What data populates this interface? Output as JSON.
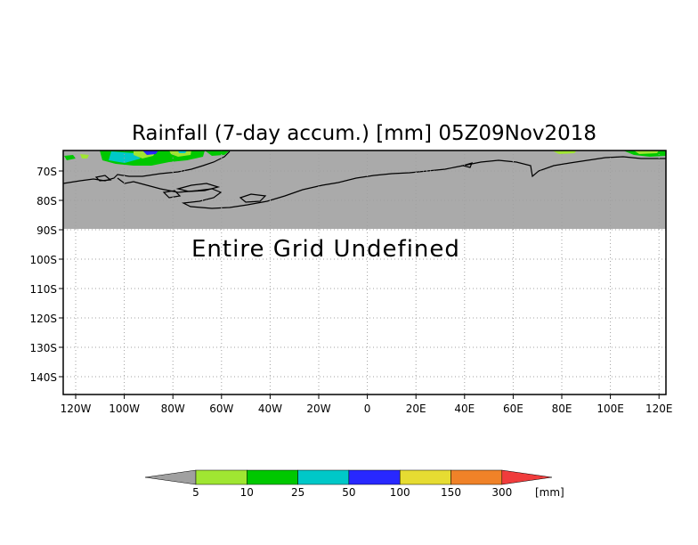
{
  "title": "Rainfall (7-day accum.) [mm] 05Z09Nov2018",
  "message": "Entire Grid Undefined",
  "lat_ticks": [
    "70S",
    "80S",
    "90S",
    "100S",
    "110S",
    "120S",
    "130S",
    "140S"
  ],
  "lon_ticks": [
    "120W",
    "100W",
    "80W",
    "60W",
    "40W",
    "20W",
    "0",
    "20E",
    "40E",
    "60E",
    "80E",
    "100E",
    "120E"
  ],
  "legend": {
    "unit": "[mm]",
    "labels": [
      "5",
      "10",
      "25",
      "50",
      "100",
      "150",
      "300"
    ],
    "colors": [
      "#a0a0a0",
      "#a0e632",
      "#00c800",
      "#00c8c8",
      "#2828ff",
      "#e6dc32",
      "#f08228",
      "#f03c3c"
    ]
  },
  "colors": {
    "undefined_fill": "#aaaaaa",
    "gridline": "#a0a0a0"
  }
}
